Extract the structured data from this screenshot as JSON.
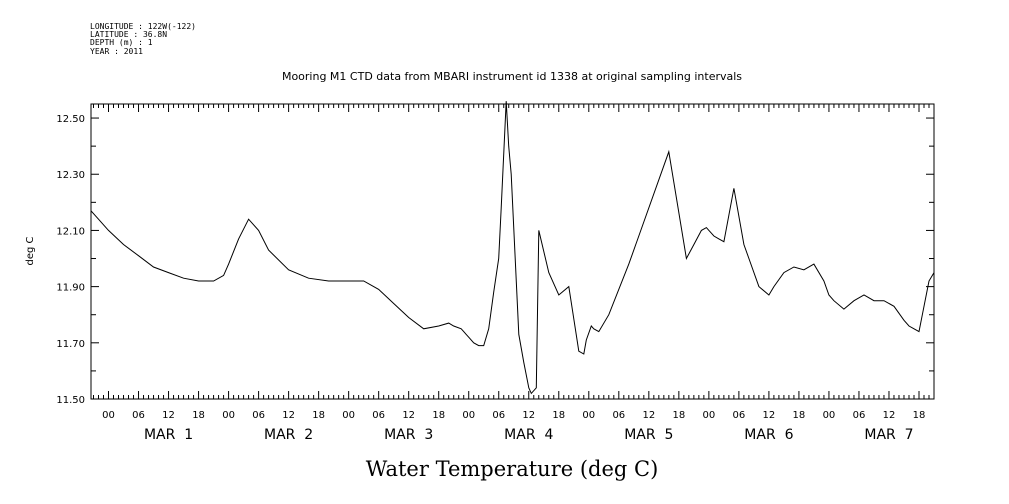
{
  "metadata": {
    "longitude": "LONGITUDE : 122W(-122)",
    "latitude": "LATITUDE : 36.8N",
    "depth": "DEPTH (m) : 1",
    "year": "YEAR : 2011"
  },
  "chart_data": {
    "type": "line",
    "title": "Mooring M1 CTD data from MBARI instrument id 1338 at original sampling intervals",
    "xlabel": "Water Temperature (deg C)",
    "ylabel": "deg C",
    "ylim": [
      11.5,
      12.55
    ],
    "xlim": [
      "2011-02-28T20:30",
      "2011-03-07T21:00"
    ],
    "y_ticks": [
      "11.50",
      "11.70",
      "11.90",
      "12.10",
      "12.30",
      "12.50"
    ],
    "x_hour_ticks": [
      "00",
      "06",
      "12",
      "18",
      "00",
      "06",
      "12",
      "18",
      "00",
      "06",
      "12",
      "18",
      "00",
      "06",
      "12",
      "18",
      "00",
      "06",
      "12",
      "18",
      "00",
      "06",
      "12",
      "18",
      "00",
      "06",
      "12",
      "18"
    ],
    "x_day_labels": [
      "MAR  1",
      "MAR  2",
      "MAR  3",
      "MAR  4",
      "MAR  5",
      "MAR  6",
      "MAR  7"
    ],
    "grid": false,
    "color": "#000000",
    "series": [
      {
        "x": [
          "2011-02-28T20:30",
          "2011-02-28T22:00",
          "2011-03-01T00:00",
          "2011-03-01T03:00",
          "2011-03-01T06:00",
          "2011-03-01T09:00",
          "2011-03-01T12:00",
          "2011-03-01T15:00",
          "2011-03-01T18:00",
          "2011-03-01T21:00",
          "2011-03-01T23:00",
          "2011-03-02T00:00",
          "2011-03-02T02:00",
          "2011-03-02T04:00",
          "2011-03-02T06:00",
          "2011-03-02T08:00",
          "2011-03-02T12:00",
          "2011-03-02T16:00",
          "2011-03-02T20:00",
          "2011-03-02T22:00",
          "2011-03-03T00:00",
          "2011-03-03T03:00",
          "2011-03-03T06:00",
          "2011-03-03T09:00",
          "2011-03-03T12:00",
          "2011-03-03T15:00",
          "2011-03-03T18:00",
          "2011-03-03T20:00",
          "2011-03-03T21:00",
          "2011-03-03T22:30",
          "2011-03-03T23:00",
          "2011-03-03T23:30",
          "2011-03-04T00:00",
          "2011-03-04T01:00",
          "2011-03-04T02:00",
          "2011-03-04T03:00",
          "2011-03-04T04:00",
          "2011-03-04T05:00",
          "2011-03-04T06:00",
          "2011-03-04T06:30",
          "2011-03-04T07:30",
          "2011-03-04T08:00",
          "2011-03-04T08:30",
          "2011-03-04T10:00",
          "2011-03-04T11:00",
          "2011-03-04T12:00",
          "2011-03-04T12:30",
          "2011-03-04T13:30",
          "2011-03-04T14:00",
          "2011-03-04T16:00",
          "2011-03-04T18:00",
          "2011-03-04T20:00",
          "2011-03-04T22:00",
          "2011-03-04T23:00",
          "2011-03-04T23:30",
          "2011-03-05T00:30",
          "2011-03-05T01:00",
          "2011-03-05T02:00",
          "2011-03-05T04:00",
          "2011-03-05T08:00",
          "2011-03-05T16:00",
          "2011-03-05T19:30",
          "2011-03-05T21:00",
          "2011-03-05T22:30",
          "2011-03-05T23:30",
          "2011-03-06T00:00",
          "2011-03-06T00:30",
          "2011-03-06T01:00",
          "2011-03-06T02:00",
          "2011-03-06T03:00",
          "2011-03-06T05:00",
          "2011-03-06T07:00",
          "2011-03-06T08:00",
          "2011-03-06T10:00",
          "2011-03-06T12:00",
          "2011-03-06T13:00",
          "2011-03-06T15:00",
          "2011-03-06T17:00",
          "2011-03-06T19:00",
          "2011-03-06T21:00",
          "2011-03-06T23:00",
          "2011-03-07T00:00",
          "2011-03-07T01:00",
          "2011-03-07T03:00",
          "2011-03-07T05:00",
          "2011-03-07T07:00",
          "2011-03-07T09:00",
          "2011-03-07T11:00",
          "2011-03-07T13:00",
          "2011-03-07T15:00",
          "2011-03-07T16:00",
          "2011-03-07T17:00",
          "2011-03-07T18:00",
          "2011-03-07T19:00",
          "2011-03-07T20:00",
          "2011-03-07T21:00"
        ],
        "values": [
          12.17,
          12.14,
          12.1,
          12.05,
          12.01,
          11.97,
          11.95,
          11.93,
          11.92,
          11.92,
          11.94,
          11.98,
          12.07,
          12.14,
          12.1,
          12.03,
          11.96,
          11.93,
          11.92,
          11.92,
          11.92,
          11.92,
          11.89,
          11.84,
          11.79,
          11.75,
          11.76,
          11.77,
          11.76,
          11.75,
          11.74,
          11.73,
          11.72,
          11.7,
          11.69,
          11.69,
          11.75,
          11.88,
          12.0,
          12.18,
          12.56,
          12.4,
          12.3,
          11.73,
          11.63,
          11.54,
          11.52,
          11.54,
          12.1,
          11.95,
          11.87,
          11.9,
          11.67,
          11.66,
          11.71,
          11.76,
          11.75,
          11.74,
          11.8,
          11.98,
          12.38,
          12.0,
          12.05,
          12.1,
          12.11,
          12.1,
          12.09,
          12.08,
          12.07,
          12.06,
          12.25,
          12.05,
          12.0,
          11.9,
          11.87,
          11.9,
          11.95,
          11.97,
          11.96,
          11.98,
          11.92,
          11.87,
          11.85,
          11.82,
          11.85,
          11.87,
          11.85,
          11.85,
          11.83,
          11.78,
          11.76,
          11.75,
          11.74,
          11.83,
          11.92,
          11.95
        ]
      }
    ]
  }
}
